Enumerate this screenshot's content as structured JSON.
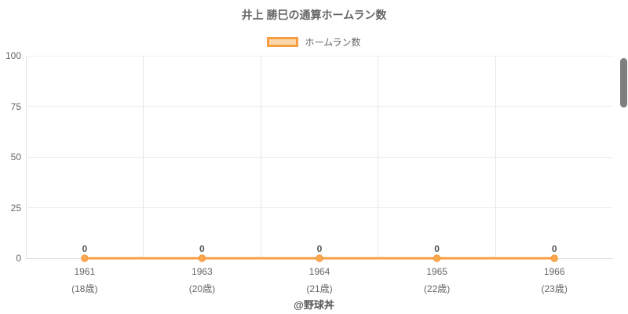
{
  "title": "井上 勝巳の通算ホームラン数",
  "legend": {
    "label": "ホームラン数"
  },
  "footer": "@野球丼",
  "colors": {
    "title_text": "#666666",
    "tick_text": "#666666",
    "line": "#f89d40",
    "marker_fill": "#f9a94f",
    "legend_fill": "#fcd7a7",
    "grid_horizontal": "#efefef",
    "grid_vertical": "#e5e5e5",
    "axis_line": "#d9d9d9",
    "data_label_text": "#555555",
    "footer_text": "#595959",
    "scrollbar": "#7f7f7f"
  },
  "chart_data": {
    "type": "line",
    "title": "井上 勝巳の通算ホームラン数",
    "categories": [
      "1961",
      "1963",
      "1964",
      "1965",
      "1966"
    ],
    "category_sublabels": [
      "(18歳)",
      "(20歳)",
      "(21歳)",
      "(22歳)",
      "(23歳)"
    ],
    "series": [
      {
        "name": "ホームラン数",
        "values": [
          0,
          0,
          0,
          0,
          0
        ]
      }
    ],
    "data_labels": [
      "0",
      "0",
      "0",
      "0",
      "0"
    ],
    "xlabel": "",
    "ylabel": "",
    "ylim": [
      0,
      100
    ],
    "yticks": [
      0,
      25,
      50,
      75,
      100
    ],
    "grid": true,
    "legend_position": "top"
  }
}
